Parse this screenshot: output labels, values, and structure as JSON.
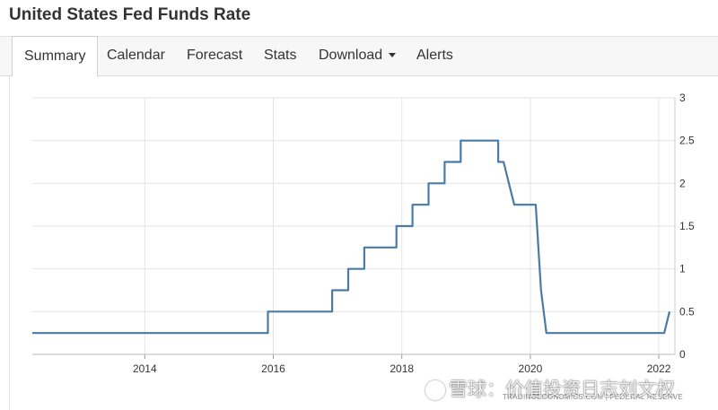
{
  "page": {
    "title": "United States Fed Funds Rate"
  },
  "tabs": [
    {
      "label": "Summary",
      "active": true
    },
    {
      "label": "Calendar"
    },
    {
      "label": "Forecast"
    },
    {
      "label": "Stats"
    },
    {
      "label": "Download",
      "dropdown": true
    },
    {
      "label": "Alerts"
    }
  ],
  "chart_data": {
    "type": "line",
    "title": "",
    "xlabel": "",
    "ylabel": "",
    "xlim": [
      "2012-04",
      "2022-04"
    ],
    "ylim": [
      0,
      3
    ],
    "x_ticks": [
      "2014",
      "2016",
      "2018",
      "2020",
      "2022"
    ],
    "y_ticks": [
      "0",
      "0.5",
      "1",
      "1.5",
      "2",
      "2.5",
      "3"
    ],
    "grid": true,
    "y_axis_side": "right",
    "line_color": "#4a7ba6",
    "series": [
      {
        "x": [
          "2012-04",
          "2015-12",
          "2015-12",
          "2016-12",
          "2016-12",
          "2017-03",
          "2017-03",
          "2017-06",
          "2017-06",
          "2017-12",
          "2017-12",
          "2018-03",
          "2018-03",
          "2018-06",
          "2018-06",
          "2018-09",
          "2018-09",
          "2018-12",
          "2018-12",
          "2019-07",
          "2019-07",
          "2019-08",
          "2019-09",
          "2019-10",
          "2020-02",
          "2020-03",
          "2020-04",
          "2022-02",
          "2022-03"
        ],
        "y": [
          0.25,
          0.25,
          0.5,
          0.5,
          0.75,
          0.75,
          1.0,
          1.0,
          1.25,
          1.25,
          1.5,
          1.5,
          1.75,
          1.75,
          2.0,
          2.0,
          2.25,
          2.25,
          2.5,
          2.5,
          2.25,
          2.25,
          2.0,
          1.75,
          1.75,
          0.75,
          0.25,
          0.25,
          0.5
        ]
      }
    ]
  },
  "source": "TRADINGECONOMICS.COM  |  FEDERAL RESERVE",
  "watermark": "雪球：价值投资日志刘文权"
}
